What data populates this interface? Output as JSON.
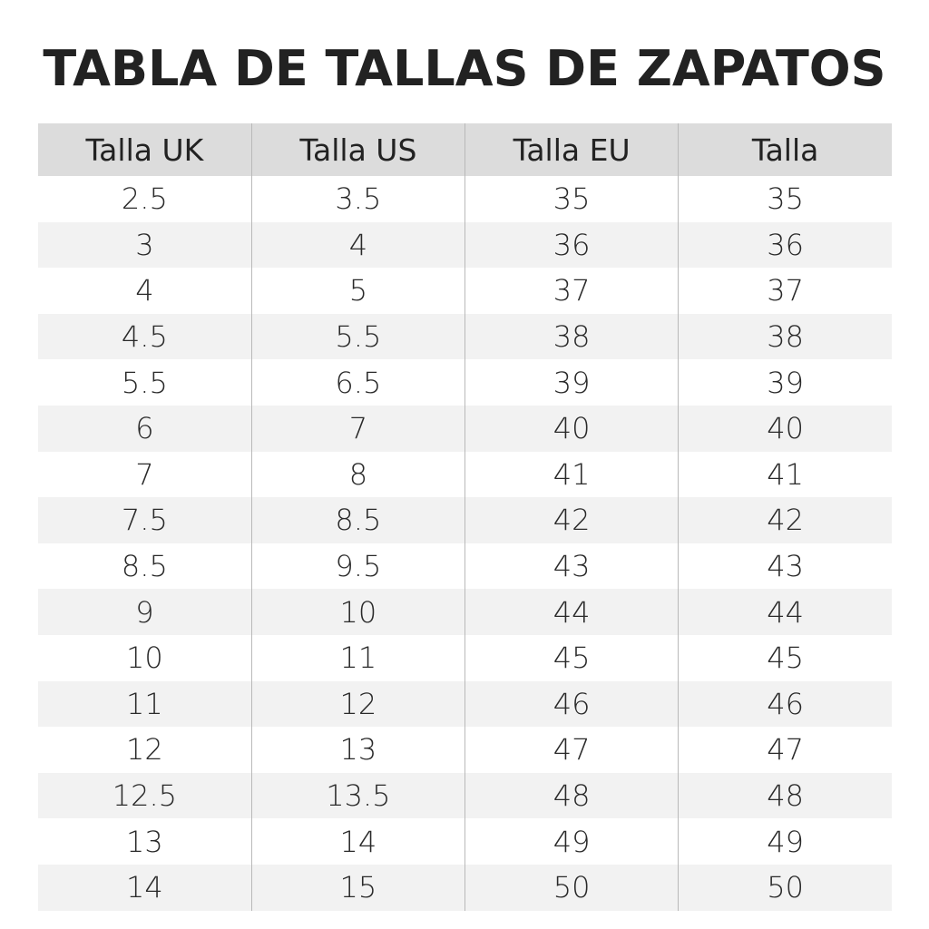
{
  "title": "TABLA DE TALLAS DE ZAPATOS",
  "columns": [
    "Talla UK",
    "Talla US",
    "Talla EU",
    "Talla"
  ],
  "rows": [
    [
      "2.5",
      "3.5",
      "35",
      "35"
    ],
    [
      "3",
      "4",
      "36",
      "36"
    ],
    [
      "4",
      "5",
      "37",
      "37"
    ],
    [
      "4.5",
      "5.5",
      "38",
      "38"
    ],
    [
      "5.5",
      "6.5",
      "39",
      "39"
    ],
    [
      "6",
      "7",
      "40",
      "40"
    ],
    [
      "7",
      "8",
      "41",
      "41"
    ],
    [
      "7.5",
      "8.5",
      "42",
      "42"
    ],
    [
      "8.5",
      "9.5",
      "43",
      "43"
    ],
    [
      "9",
      "10",
      "44",
      "44"
    ],
    [
      "10",
      "11",
      "45",
      "45"
    ],
    [
      "11",
      "12",
      "46",
      "46"
    ],
    [
      "12",
      "13",
      "47",
      "47"
    ],
    [
      "12.5",
      "13.5",
      "48",
      "48"
    ],
    [
      "13",
      "14",
      "49",
      "49"
    ],
    [
      "14",
      "15",
      "50",
      "50"
    ]
  ],
  "colors": {
    "header_bg": "#dcdcdc",
    "stripe_bg": "#f2f2f2",
    "text": "#222222",
    "divider": "#b9b9b9"
  }
}
